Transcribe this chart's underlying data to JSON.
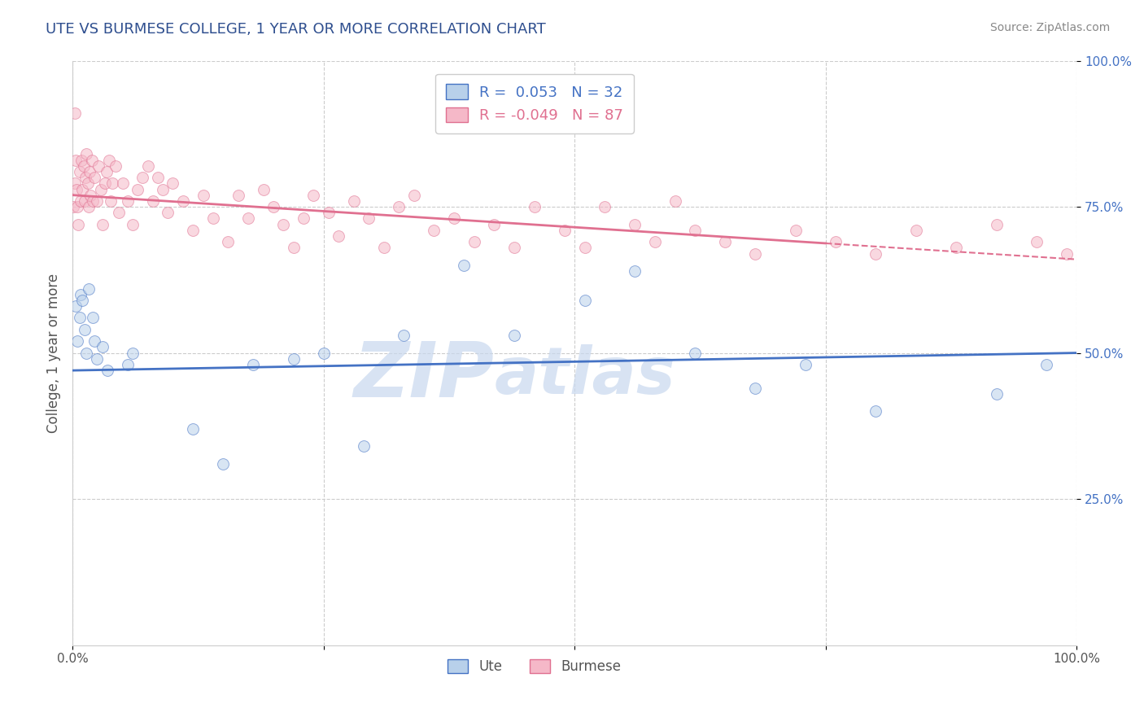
{
  "title": "UTE VS BURMESE COLLEGE, 1 YEAR OR MORE CORRELATION CHART",
  "source_text": "Source: ZipAtlas.com",
  "ylabel": "College, 1 year or more",
  "watermark_line1": "ZIP",
  "watermark_line2": "atlas",
  "ute_R": 0.053,
  "ute_N": 32,
  "burmese_R": -0.049,
  "burmese_N": 87,
  "ute_color": "#b8d0ea",
  "burmese_color": "#f5b8c8",
  "ute_line_color": "#4472c4",
  "burmese_line_color": "#e07090",
  "ute_x": [
    0.003,
    0.005,
    0.007,
    0.008,
    0.01,
    0.012,
    0.014,
    0.016,
    0.02,
    0.022,
    0.024,
    0.03,
    0.035,
    0.055,
    0.06,
    0.12,
    0.15,
    0.18,
    0.22,
    0.25,
    0.29,
    0.33,
    0.39,
    0.44,
    0.51,
    0.56,
    0.62,
    0.68,
    0.73,
    0.8,
    0.92,
    0.97
  ],
  "ute_y": [
    0.58,
    0.52,
    0.56,
    0.6,
    0.59,
    0.54,
    0.5,
    0.61,
    0.56,
    0.52,
    0.49,
    0.51,
    0.47,
    0.48,
    0.5,
    0.37,
    0.31,
    0.48,
    0.49,
    0.5,
    0.34,
    0.53,
    0.65,
    0.53,
    0.59,
    0.64,
    0.5,
    0.44,
    0.48,
    0.4,
    0.43,
    0.48
  ],
  "burmese_x": [
    0.001,
    0.002,
    0.003,
    0.004,
    0.005,
    0.006,
    0.007,
    0.008,
    0.009,
    0.01,
    0.011,
    0.012,
    0.013,
    0.014,
    0.015,
    0.016,
    0.017,
    0.018,
    0.019,
    0.02,
    0.022,
    0.024,
    0.026,
    0.028,
    0.03,
    0.032,
    0.034,
    0.036,
    0.038,
    0.04,
    0.043,
    0.046,
    0.05,
    0.055,
    0.06,
    0.065,
    0.07,
    0.075,
    0.08,
    0.085,
    0.09,
    0.095,
    0.1,
    0.11,
    0.12,
    0.13,
    0.14,
    0.155,
    0.165,
    0.175,
    0.19,
    0.2,
    0.21,
    0.22,
    0.23,
    0.24,
    0.255,
    0.265,
    0.28,
    0.295,
    0.31,
    0.325,
    0.34,
    0.36,
    0.38,
    0.4,
    0.42,
    0.44,
    0.46,
    0.49,
    0.51,
    0.53,
    0.56,
    0.58,
    0.6,
    0.62,
    0.65,
    0.68,
    0.72,
    0.76,
    0.8,
    0.84,
    0.88,
    0.92,
    0.96,
    0.99,
    0.002
  ],
  "burmese_y": [
    0.75,
    0.79,
    0.83,
    0.78,
    0.75,
    0.72,
    0.81,
    0.76,
    0.83,
    0.78,
    0.82,
    0.76,
    0.8,
    0.84,
    0.79,
    0.75,
    0.81,
    0.77,
    0.83,
    0.76,
    0.8,
    0.76,
    0.82,
    0.78,
    0.72,
    0.79,
    0.81,
    0.83,
    0.76,
    0.79,
    0.82,
    0.74,
    0.79,
    0.76,
    0.72,
    0.78,
    0.8,
    0.82,
    0.76,
    0.8,
    0.78,
    0.74,
    0.79,
    0.76,
    0.71,
    0.77,
    0.73,
    0.69,
    0.77,
    0.73,
    0.78,
    0.75,
    0.72,
    0.68,
    0.73,
    0.77,
    0.74,
    0.7,
    0.76,
    0.73,
    0.68,
    0.75,
    0.77,
    0.71,
    0.73,
    0.69,
    0.72,
    0.68,
    0.75,
    0.71,
    0.68,
    0.75,
    0.72,
    0.69,
    0.76,
    0.71,
    0.69,
    0.67,
    0.71,
    0.69,
    0.67,
    0.71,
    0.68,
    0.72,
    0.69,
    0.67,
    0.91
  ],
  "ute_trend_x0": 0.0,
  "ute_trend_x1": 1.0,
  "ute_trend_y0": 0.47,
  "ute_trend_y1": 0.5,
  "burmese_trend_x0": 0.0,
  "burmese_trend_x1": 1.0,
  "burmese_trend_y0": 0.77,
  "burmese_trend_y1": 0.66,
  "xlim": [
    0.0,
    1.0
  ],
  "ylim": [
    0.0,
    1.0
  ],
  "xtick_positions": [
    0.0,
    0.25,
    0.5,
    0.75,
    1.0
  ],
  "xtick_labels": [
    "0.0%",
    "",
    "",
    "",
    "100.0%"
  ],
  "ytick_positions": [
    0.25,
    0.5,
    0.75,
    1.0
  ],
  "ytick_labels": [
    "25.0%",
    "50.0%",
    "75.0%",
    "100.0%"
  ],
  "grid_color": "#cccccc",
  "background_color": "#ffffff",
  "title_color": "#2f4f8f",
  "source_color": "#888888",
  "ute_legend_color": "#4472c4",
  "burmese_legend_color": "#e07090",
  "marker_size": 100,
  "marker_alpha": 0.55,
  "watermark_color": "#c8d8ee",
  "watermark_fontsize_zip": 68,
  "watermark_fontsize_atlas": 58
}
